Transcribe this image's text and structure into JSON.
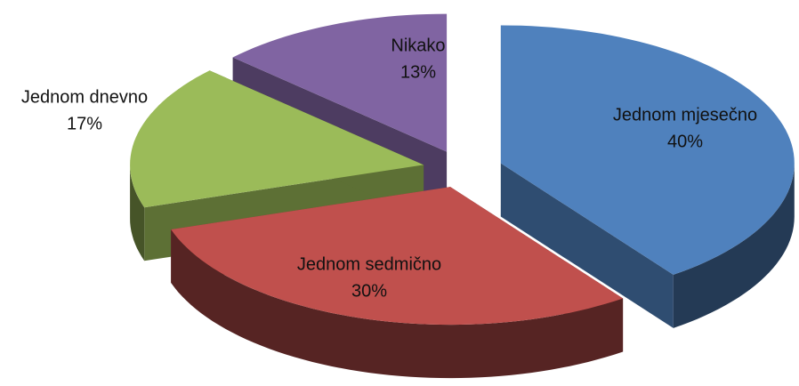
{
  "chart_data": {
    "type": "pie",
    "categories": [
      "Jednom mjesečno",
      "Jednom sedmično",
      "Jednom dnevno",
      "Nikako"
    ],
    "values": [
      40,
      30,
      17,
      13
    ],
    "value_labels": [
      "40%",
      "30%",
      "17%",
      "13%"
    ],
    "colors": [
      "#4f81bd",
      "#c0504d",
      "#9bbb59",
      "#8064a2"
    ]
  }
}
